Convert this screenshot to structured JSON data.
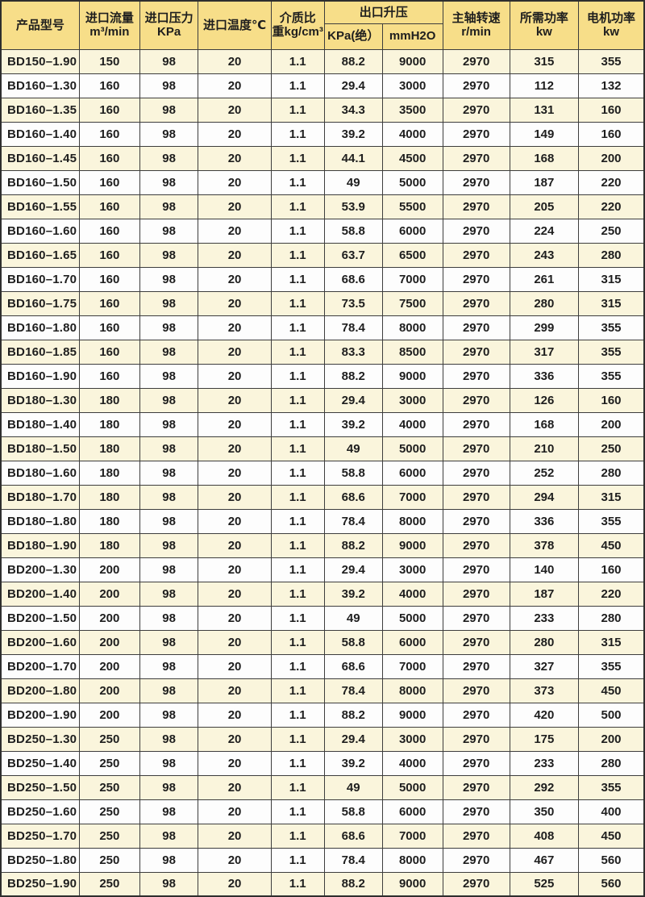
{
  "table": {
    "columns": {
      "model": "产品型号",
      "inlet_flow": "进口流量\nm³/min",
      "inlet_pressure": "进口压力\nKPa",
      "inlet_temp": "进口温度℃",
      "medium_density": "介质比\n重kg/cm³",
      "outlet_rise_group": "出口升压",
      "outlet_kpa": "KPa(绝）",
      "outlet_mmh2o": "mmH2O",
      "shaft_speed": "主轴转速\nr/min",
      "required_power": "所需功率\nkw",
      "motor_power": "电机功率\nkw"
    },
    "rows": [
      [
        "BD150–1.90",
        "150",
        "98",
        "20",
        "1.1",
        "88.2",
        "9000",
        "2970",
        "315",
        "355"
      ],
      [
        "BD160–1.30",
        "160",
        "98",
        "20",
        "1.1",
        "29.4",
        "3000",
        "2970",
        "112",
        "132"
      ],
      [
        "BD160–1.35",
        "160",
        "98",
        "20",
        "1.1",
        "34.3",
        "3500",
        "2970",
        "131",
        "160"
      ],
      [
        "BD160–1.40",
        "160",
        "98",
        "20",
        "1.1",
        "39.2",
        "4000",
        "2970",
        "149",
        "160"
      ],
      [
        "BD160–1.45",
        "160",
        "98",
        "20",
        "1.1",
        "44.1",
        "4500",
        "2970",
        "168",
        "200"
      ],
      [
        "BD160–1.50",
        "160",
        "98",
        "20",
        "1.1",
        "49",
        "5000",
        "2970",
        "187",
        "220"
      ],
      [
        "BD160–1.55",
        "160",
        "98",
        "20",
        "1.1",
        "53.9",
        "5500",
        "2970",
        "205",
        "220"
      ],
      [
        "BD160–1.60",
        "160",
        "98",
        "20",
        "1.1",
        "58.8",
        "6000",
        "2970",
        "224",
        "250"
      ],
      [
        "BD160–1.65",
        "160",
        "98",
        "20",
        "1.1",
        "63.7",
        "6500",
        "2970",
        "243",
        "280"
      ],
      [
        "BD160–1.70",
        "160",
        "98",
        "20",
        "1.1",
        "68.6",
        "7000",
        "2970",
        "261",
        "315"
      ],
      [
        "BD160–1.75",
        "160",
        "98",
        "20",
        "1.1",
        "73.5",
        "7500",
        "2970",
        "280",
        "315"
      ],
      [
        "BD160–1.80",
        "160",
        "98",
        "20",
        "1.1",
        "78.4",
        "8000",
        "2970",
        "299",
        "355"
      ],
      [
        "BD160–1.85",
        "160",
        "98",
        "20",
        "1.1",
        "83.3",
        "8500",
        "2970",
        "317",
        "355"
      ],
      [
        "BD160–1.90",
        "160",
        "98",
        "20",
        "1.1",
        "88.2",
        "9000",
        "2970",
        "336",
        "355"
      ],
      [
        "BD180–1.30",
        "180",
        "98",
        "20",
        "1.1",
        "29.4",
        "3000",
        "2970",
        "126",
        "160"
      ],
      [
        "BD180–1.40",
        "180",
        "98",
        "20",
        "1.1",
        "39.2",
        "4000",
        "2970",
        "168",
        "200"
      ],
      [
        "BD180–1.50",
        "180",
        "98",
        "20",
        "1.1",
        "49",
        "5000",
        "2970",
        "210",
        "250"
      ],
      [
        "BD180–1.60",
        "180",
        "98",
        "20",
        "1.1",
        "58.8",
        "6000",
        "2970",
        "252",
        "280"
      ],
      [
        "BD180–1.70",
        "180",
        "98",
        "20",
        "1.1",
        "68.6",
        "7000",
        "2970",
        "294",
        "315"
      ],
      [
        "BD180–1.80",
        "180",
        "98",
        "20",
        "1.1",
        "78.4",
        "8000",
        "2970",
        "336",
        "355"
      ],
      [
        "BD180–1.90",
        "180",
        "98",
        "20",
        "1.1",
        "88.2",
        "9000",
        "2970",
        "378",
        "450"
      ],
      [
        "BD200–1.30",
        "200",
        "98",
        "20",
        "1.1",
        "29.4",
        "3000",
        "2970",
        "140",
        "160"
      ],
      [
        "BD200–1.40",
        "200",
        "98",
        "20",
        "1.1",
        "39.2",
        "4000",
        "2970",
        "187",
        "220"
      ],
      [
        "BD200–1.50",
        "200",
        "98",
        "20",
        "1.1",
        "49",
        "5000",
        "2970",
        "233",
        "280"
      ],
      [
        "BD200–1.60",
        "200",
        "98",
        "20",
        "1.1",
        "58.8",
        "6000",
        "2970",
        "280",
        "315"
      ],
      [
        "BD200–1.70",
        "200",
        "98",
        "20",
        "1.1",
        "68.6",
        "7000",
        "2970",
        "327",
        "355"
      ],
      [
        "BD200–1.80",
        "200",
        "98",
        "20",
        "1.1",
        "78.4",
        "8000",
        "2970",
        "373",
        "450"
      ],
      [
        "BD200–1.90",
        "200",
        "98",
        "20",
        "1.1",
        "88.2",
        "9000",
        "2970",
        "420",
        "500"
      ],
      [
        "BD250–1.30",
        "250",
        "98",
        "20",
        "1.1",
        "29.4",
        "3000",
        "2970",
        "175",
        "200"
      ],
      [
        "BD250–1.40",
        "250",
        "98",
        "20",
        "1.1",
        "39.2",
        "4000",
        "2970",
        "233",
        "280"
      ],
      [
        "BD250–1.50",
        "250",
        "98",
        "20",
        "1.1",
        "49",
        "5000",
        "2970",
        "292",
        "355"
      ],
      [
        "BD250–1.60",
        "250",
        "98",
        "20",
        "1.1",
        "58.8",
        "6000",
        "2970",
        "350",
        "400"
      ],
      [
        "BD250–1.70",
        "250",
        "98",
        "20",
        "1.1",
        "68.6",
        "7000",
        "2970",
        "408",
        "450"
      ],
      [
        "BD250–1.80",
        "250",
        "98",
        "20",
        "1.1",
        "78.4",
        "8000",
        "2970",
        "467",
        "560"
      ],
      [
        "BD250–1.90",
        "250",
        "98",
        "20",
        "1.1",
        "88.2",
        "9000",
        "2970",
        "525",
        "560"
      ]
    ]
  },
  "colors": {
    "header_bg": "#f7de89",
    "row_cream": "#faf5dc",
    "row_white": "#fdfdfd",
    "border": "#3d3d3d",
    "text": "#1e1e1e"
  }
}
